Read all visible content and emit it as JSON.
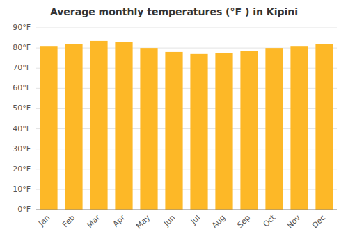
{
  "chart_data": {
    "type": "bar",
    "title": "Average monthly temperatures (°F ) in Kipini",
    "categories": [
      "Jan",
      "Feb",
      "Mar",
      "Apr",
      "May",
      "Jun",
      "Jul",
      "Aug",
      "Sep",
      "Oct",
      "Nov",
      "Dec"
    ],
    "values": [
      81,
      82,
      83.5,
      83,
      80,
      78,
      77,
      77.5,
      78.5,
      80,
      81,
      82
    ],
    "color": "#FDB827",
    "ylim": [
      0,
      90
    ],
    "yticks": [
      {
        "value": 0,
        "label": "0°F"
      },
      {
        "value": 10,
        "label": "10°F"
      },
      {
        "value": 20,
        "label": "20°F"
      },
      {
        "value": 30,
        "label": "30°F"
      },
      {
        "value": 40,
        "label": "40°F"
      },
      {
        "value": 50,
        "label": "50°F"
      },
      {
        "value": 60,
        "label": "60°F"
      },
      {
        "value": 70,
        "label": "70°F"
      },
      {
        "value": 80,
        "label": "80°F"
      },
      {
        "value": 90,
        "label": "90°F"
      }
    ],
    "grid": true
  }
}
